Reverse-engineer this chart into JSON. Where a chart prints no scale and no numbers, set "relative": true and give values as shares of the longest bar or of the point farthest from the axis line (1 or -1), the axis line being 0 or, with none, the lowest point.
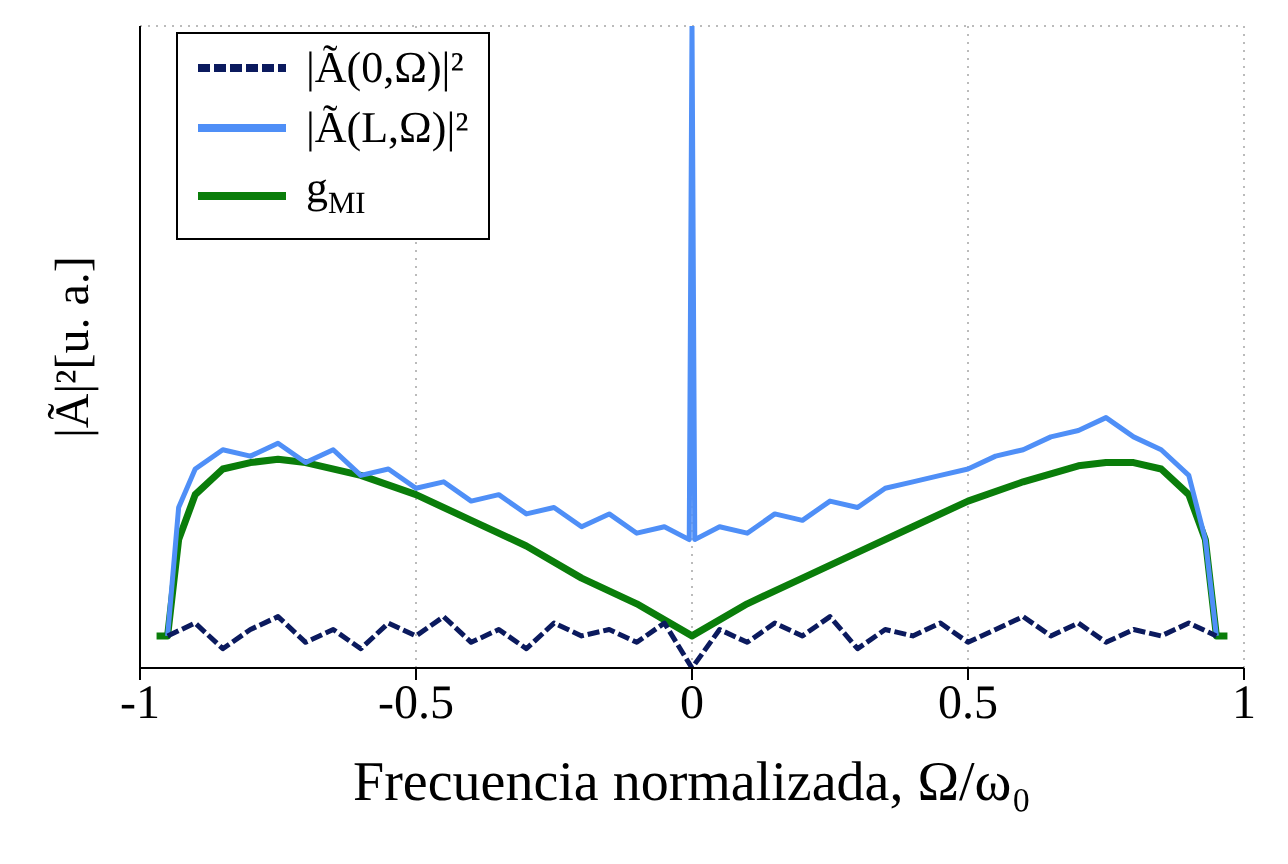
{
  "chart_data": {
    "type": "line",
    "relative": true,
    "xlabel": "Frecuencia normalizada, Ω/ω₀",
    "ylabel": "|Ã|²[u. a.]",
    "xlim": [
      -1,
      1
    ],
    "xticks": [
      -1,
      -0.5,
      0,
      0.5,
      1
    ],
    "grid": true,
    "legend": "top left",
    "marker": "none",
    "series": [
      {
        "name": "|Ã(0,Ω)|²",
        "color": "#0b1a5e",
        "line_style": "dashed",
        "x": [
          -0.95,
          -0.9,
          -0.85,
          -0.8,
          -0.75,
          -0.7,
          -0.65,
          -0.6,
          -0.55,
          -0.5,
          -0.45,
          -0.4,
          -0.35,
          -0.3,
          -0.25,
          -0.2,
          -0.15,
          -0.1,
          -0.05,
          0,
          0.05,
          0.1,
          0.15,
          0.2,
          0.25,
          0.3,
          0.35,
          0.4,
          0.45,
          0.5,
          0.55,
          0.6,
          0.65,
          0.7,
          0.75,
          0.8,
          0.85,
          0.9,
          0.95
        ],
        "values": [
          0.05,
          0.07,
          0.03,
          0.06,
          0.08,
          0.04,
          0.06,
          0.03,
          0.07,
          0.05,
          0.08,
          0.04,
          0.06,
          0.03,
          0.07,
          0.05,
          0.06,
          0.04,
          0.07,
          0,
          0.06,
          0.04,
          0.07,
          0.05,
          0.08,
          0.03,
          0.06,
          0.05,
          0.07,
          0.04,
          0.06,
          0.08,
          0.05,
          0.07,
          0.04,
          0.06,
          0.05,
          0.07,
          0.05
        ]
      },
      {
        "name": "|Ã(L,Ω)|²",
        "color": "#4f8ff7",
        "line_style": "solid",
        "x": [
          -0.95,
          -0.93,
          -0.9,
          -0.85,
          -0.8,
          -0.75,
          -0.7,
          -0.65,
          -0.6,
          -0.55,
          -0.5,
          -0.45,
          -0.4,
          -0.35,
          -0.3,
          -0.25,
          -0.2,
          -0.15,
          -0.1,
          -0.05,
          -0.005,
          0,
          0.005,
          0.05,
          0.1,
          0.15,
          0.2,
          0.25,
          0.3,
          0.35,
          0.4,
          0.45,
          0.5,
          0.55,
          0.6,
          0.65,
          0.7,
          0.75,
          0.8,
          0.85,
          0.9,
          0.93,
          0.95
        ],
        "values": [
          0.05,
          0.25,
          0.31,
          0.34,
          0.33,
          0.35,
          0.32,
          0.34,
          0.3,
          0.31,
          0.28,
          0.29,
          0.26,
          0.27,
          0.24,
          0.25,
          0.22,
          0.24,
          0.21,
          0.22,
          0.2,
          1,
          0.2,
          0.22,
          0.21,
          0.24,
          0.23,
          0.26,
          0.25,
          0.28,
          0.29,
          0.3,
          0.31,
          0.33,
          0.34,
          0.36,
          0.37,
          0.39,
          0.36,
          0.34,
          0.3,
          0.2,
          0.05
        ]
      },
      {
        "name": "g$_{MI}$",
        "color": "#0a7d0a",
        "line_style": "solid",
        "x": [
          -0.97,
          -0.95,
          -0.93,
          -0.9,
          -0.85,
          -0.8,
          -0.75,
          -0.7,
          -0.6,
          -0.5,
          -0.4,
          -0.3,
          -0.2,
          -0.1,
          0,
          0.1,
          0.2,
          0.3,
          0.4,
          0.5,
          0.6,
          0.7,
          0.75,
          0.8,
          0.85,
          0.9,
          0.93,
          0.95,
          0.97
        ],
        "values": [
          0.05,
          0.05,
          0.2,
          0.27,
          0.31,
          0.32,
          0.325,
          0.32,
          0.3,
          0.27,
          0.23,
          0.19,
          0.14,
          0.1,
          0.05,
          0.1,
          0.14,
          0.18,
          0.22,
          0.26,
          0.29,
          0.315,
          0.32,
          0.32,
          0.31,
          0.27,
          0.2,
          0.05,
          0.05
        ]
      }
    ]
  }
}
